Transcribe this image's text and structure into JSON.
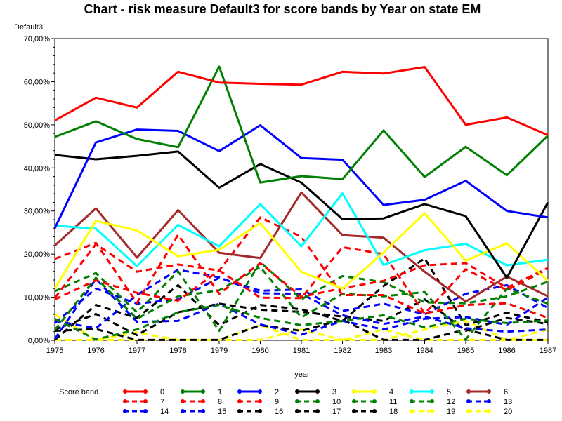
{
  "chart_data": {
    "type": "line",
    "title": "Chart - risk measure Default3 for score bands by Year on state EM",
    "xlabel": "year",
    "ylabel": "Default3",
    "x": [
      1975,
      1976,
      1977,
      1978,
      1979,
      1980,
      1981,
      1982,
      1983,
      1984,
      1985,
      1986,
      1987
    ],
    "ylim": [
      0,
      70
    ],
    "yticks": [
      "0,00%",
      "10,00%",
      "20,00%",
      "30,00%",
      "40,00%",
      "50,00%",
      "60,00%",
      "70,00%"
    ],
    "legend_title": "Score band",
    "legend_position": "bottom",
    "series": [
      {
        "name": "0",
        "color": "#ff0000",
        "dash": false,
        "values": [
          51,
          56.3,
          54,
          62.3,
          59.8,
          59.5,
          59.3,
          62.3,
          61.9,
          63.4,
          50,
          51.7,
          47.6
        ]
      },
      {
        "name": "1",
        "color": "#008000",
        "dash": false,
        "values": [
          47.2,
          50.8,
          46.7,
          44.8,
          63.5,
          36.6,
          38.1,
          37.4,
          48.7,
          37.9,
          44.9,
          38.3,
          47.5
        ]
      },
      {
        "name": "2",
        "color": "#0000ff",
        "dash": false,
        "values": [
          26,
          45.9,
          48.9,
          48.6,
          43.9,
          49.9,
          42.3,
          41.9,
          31.4,
          32.6,
          37,
          30,
          28.5
        ]
      },
      {
        "name": "3",
        "color": "#000000",
        "dash": false,
        "values": [
          43,
          42,
          42.8,
          43.8,
          35.4,
          40.9,
          36.6,
          28.1,
          28.3,
          31.6,
          28.8,
          14.5,
          32
        ]
      },
      {
        "name": "4",
        "color": "#ffff00",
        "dash": false,
        "values": [
          12,
          27.7,
          25.5,
          19.5,
          21,
          27.2,
          15.9,
          12,
          20.4,
          29.5,
          18.5,
          22.5,
          13.8
        ]
      },
      {
        "name": "5",
        "color": "#00ffff",
        "dash": false,
        "values": [
          26.6,
          25.9,
          17.2,
          26.8,
          21.8,
          31.6,
          21.8,
          34.1,
          17.5,
          20.9,
          22.4,
          17.4,
          18.7
        ]
      },
      {
        "name": "6",
        "color": "#a52a2a",
        "dash": false,
        "values": [
          22,
          30.6,
          19.2,
          30.2,
          20.3,
          19.1,
          34.3,
          24.4,
          23.8,
          15.9,
          9,
          14.8,
          10.2
        ]
      },
      {
        "name": "7",
        "color": "#ff0000",
        "dash": true,
        "values": [
          18.9,
          22.6,
          8.7,
          24.5,
          10.8,
          17.9,
          10.1,
          12.1,
          13.8,
          17.4,
          17.9,
          12.2,
          16.8
        ]
      },
      {
        "name": "8",
        "color": "#ff0000",
        "dash": true,
        "values": [
          9.8,
          22.3,
          15.9,
          17.6,
          16.2,
          9.9,
          9.8,
          21.6,
          20,
          6.2,
          16.5,
          11.6,
          16.6
        ]
      },
      {
        "name": "9",
        "color": "#ff0000",
        "dash": true,
        "values": [
          9.5,
          13.9,
          11,
          9.2,
          16.2,
          28.5,
          24,
          10.5,
          10.5,
          6.2,
          8.2,
          8.6,
          5.2
        ]
      },
      {
        "name": "10",
        "color": "#008000",
        "dash": true,
        "values": [
          11.4,
          15.6,
          6.5,
          16,
          2.2,
          18.2,
          9.5,
          14.9,
          13.5,
          8.8,
          8.6,
          10.2,
          13.6
        ]
      },
      {
        "name": "11",
        "color": "#008000",
        "dash": true,
        "values": [
          2.4,
          14.5,
          5,
          10.2,
          11.6,
          17,
          5.3,
          10.8,
          10.2,
          11.2,
          0.2,
          12,
          8.5
        ]
      },
      {
        "name": "12",
        "color": "#008000",
        "dash": true,
        "values": [
          5,
          0.2,
          2.5,
          6.5,
          8.2,
          5.2,
          3.5,
          4.5,
          5.8,
          3,
          5,
          4,
          4.6
        ]
      },
      {
        "name": "13",
        "color": "#0000ff",
        "dash": true,
        "values": [
          4,
          12,
          8.5,
          9.5,
          14.5,
          11.5,
          11.8,
          6.8,
          8.5,
          6,
          10.8,
          12.8,
          7.5
        ]
      },
      {
        "name": "14",
        "color": "#0000ff",
        "dash": true,
        "values": [
          0.3,
          14.2,
          4.3,
          4.5,
          8.5,
          3.7,
          1.3,
          4.5,
          2.5,
          5,
          5.4,
          3.6,
          10
        ]
      },
      {
        "name": "15",
        "color": "#0000ff",
        "dash": true,
        "values": [
          4.5,
          2.8,
          10.5,
          16.4,
          14.6,
          10.9,
          10.8,
          5.8,
          3.8,
          5.5,
          2.8,
          2,
          2.5
        ]
      },
      {
        "name": "16",
        "color": "#000000",
        "dash": true,
        "values": [
          0.1,
          8.2,
          5.2,
          12.8,
          3.5,
          8.2,
          7.2,
          4.5,
          12.6,
          19,
          3.5,
          6.4,
          4.2
        ]
      },
      {
        "name": "17",
        "color": "#000000",
        "dash": true,
        "values": [
          2.5,
          6.1,
          1.2,
          6.5,
          8.5,
          7.1,
          6.6,
          5.5,
          4.5,
          9.5,
          2.2,
          5.2,
          3.8
        ]
      },
      {
        "name": "18",
        "color": "#000000",
        "dash": true,
        "values": [
          2.2,
          2.6,
          0.1,
          0.1,
          0.1,
          3.5,
          2.2,
          4.8,
          0.1,
          0.1,
          2.5,
          0.1,
          0.1
        ]
      },
      {
        "name": "19",
        "color": "#ffff00",
        "dash": true,
        "values": [
          6,
          0.1,
          1.8,
          0.1,
          0.1,
          0.1,
          2.5,
          0.1,
          0.1,
          2.5,
          4.5,
          0.1,
          0.1
        ]
      },
      {
        "name": "20",
        "color": "#ffff00",
        "dash": true,
        "values": [
          0.1,
          0.1,
          0.1,
          0.1,
          0.1,
          3.5,
          0.1,
          0.1,
          2.5,
          0.1,
          0.1,
          0.1,
          2.5
        ]
      }
    ]
  }
}
